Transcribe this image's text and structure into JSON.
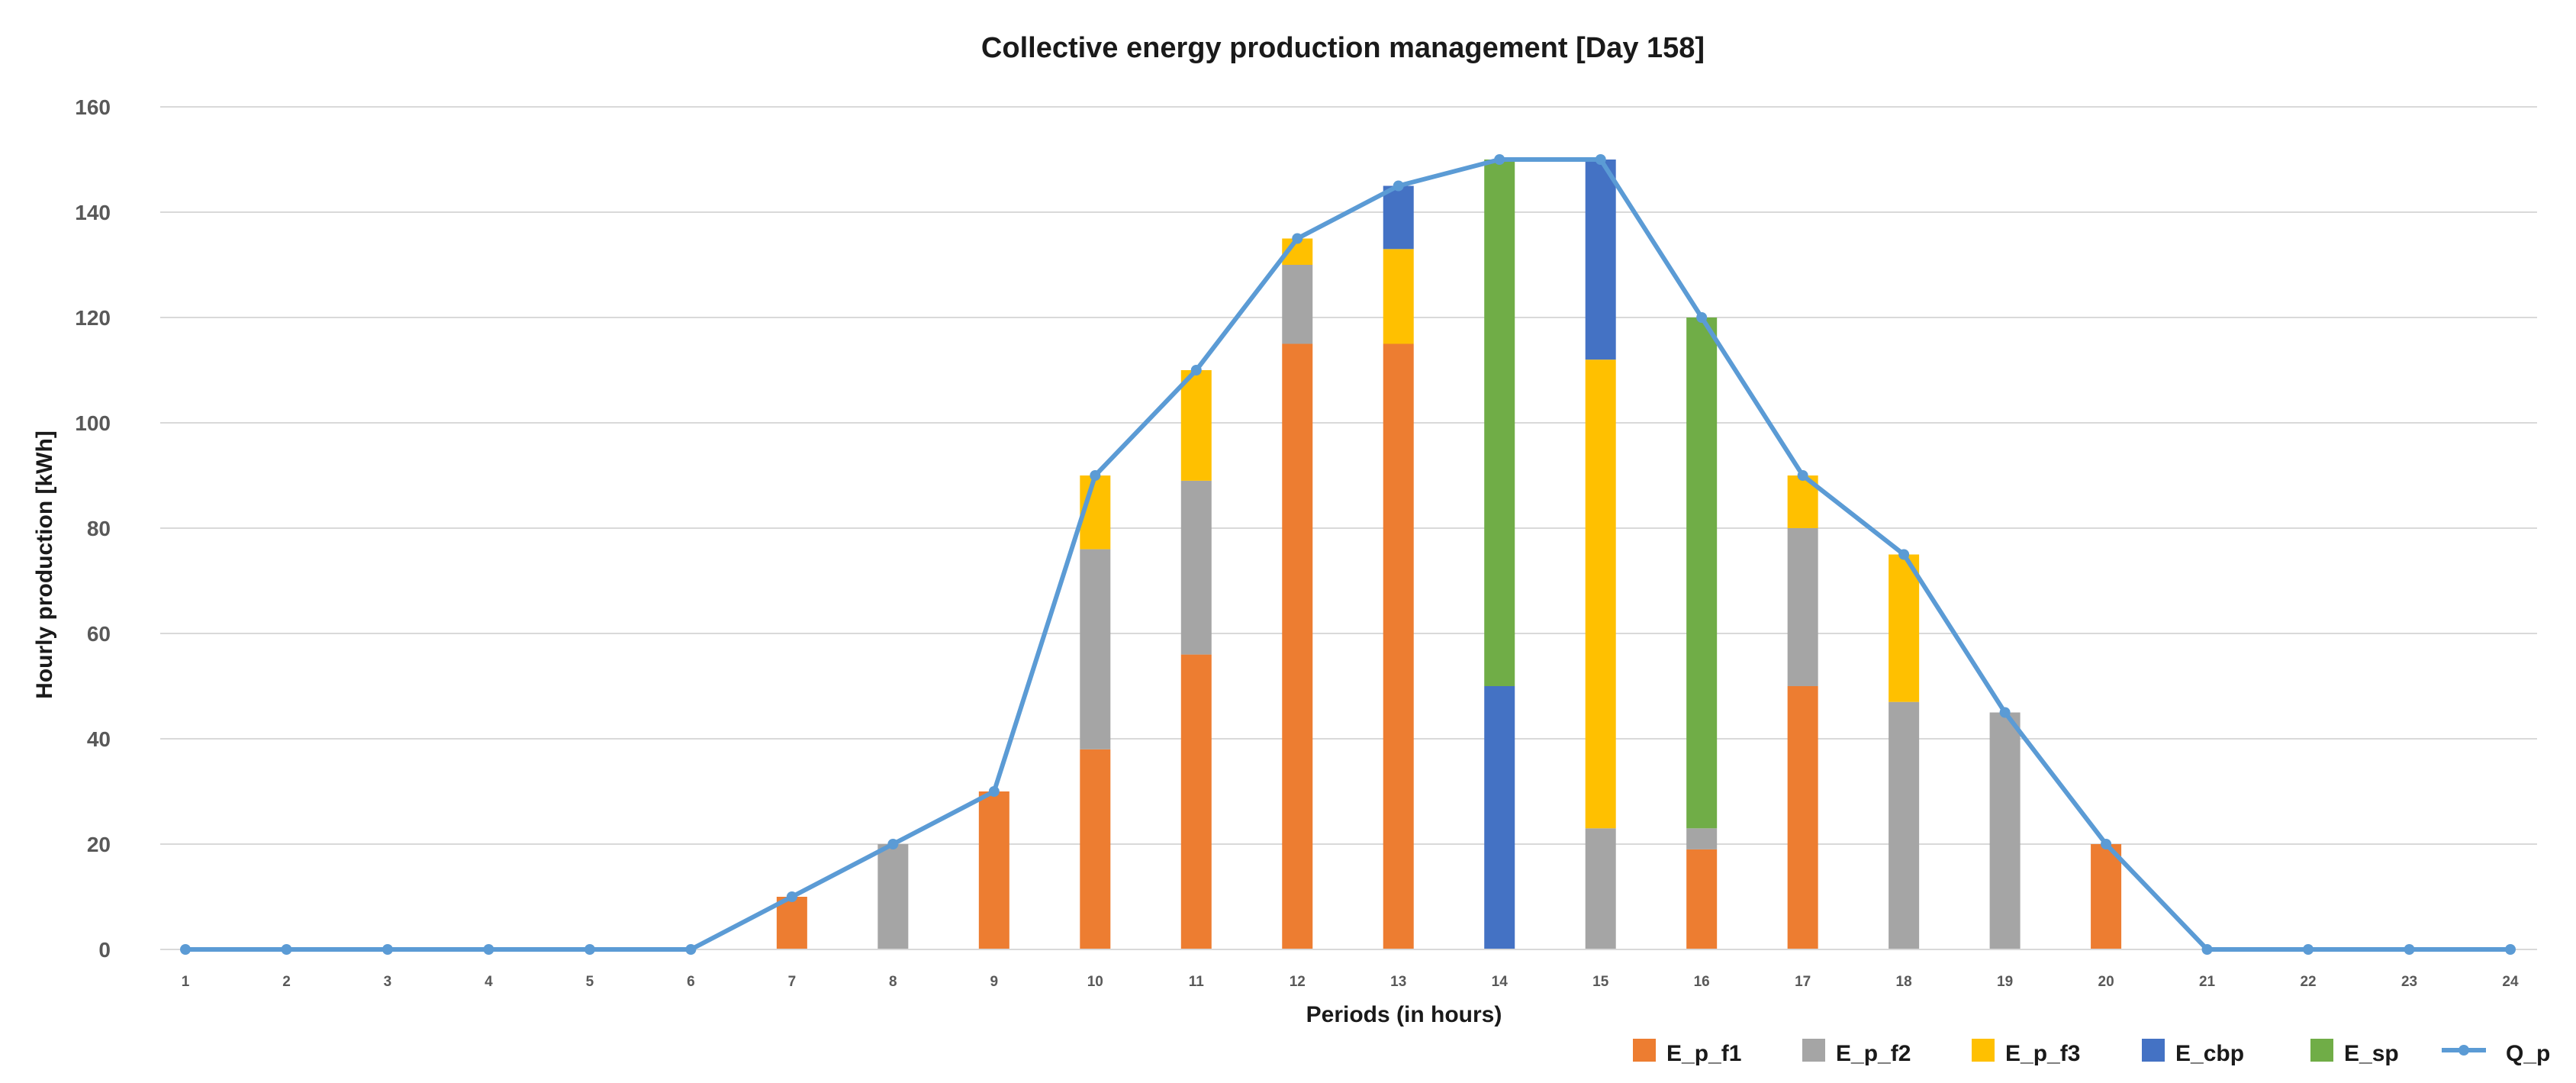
{
  "chart_data": {
    "type": "bar",
    "stacked": true,
    "title": "Collective energy production management [Day 158]",
    "xlabel": "Periods (in hours)",
    "ylabel": "Hourly production [kWh]",
    "ylim": [
      0,
      160
    ],
    "yticks": [
      0,
      20,
      40,
      60,
      80,
      100,
      120,
      140,
      160
    ],
    "grid": true,
    "legend_position": "bottom-right",
    "categories": [
      "1",
      "2",
      "3",
      "4",
      "5",
      "6",
      "7",
      "8",
      "9",
      "10",
      "11",
      "12",
      "13",
      "14",
      "15",
      "16",
      "17",
      "18",
      "19",
      "20",
      "21",
      "22",
      "23",
      "24"
    ],
    "series": [
      {
        "name": "E_p_f1",
        "color": "#ED7D31",
        "type": "bar",
        "values": [
          0,
          0,
          0,
          0,
          0,
          0,
          10,
          0,
          30,
          38,
          56,
          115,
          115,
          0,
          0,
          19,
          50,
          0,
          0,
          20,
          0,
          0,
          0,
          0
        ]
      },
      {
        "name": "E_p_f2",
        "color": "#A5A5A5",
        "type": "bar",
        "values": [
          0,
          0,
          0,
          0,
          0,
          0,
          0,
          20,
          0,
          38,
          33,
          15,
          0,
          0,
          23,
          4,
          30,
          47,
          45,
          0,
          0,
          0,
          0,
          0
        ]
      },
      {
        "name": "E_p_f3",
        "color": "#FFC000",
        "type": "bar",
        "values": [
          0,
          0,
          0,
          0,
          0,
          0,
          0,
          0,
          0,
          14,
          21,
          5,
          18,
          0,
          89,
          0,
          10,
          28,
          0,
          0,
          0,
          0,
          0,
          0
        ]
      },
      {
        "name": "E_cbp",
        "color": "#4472C4",
        "type": "bar",
        "values": [
          0,
          0,
          0,
          0,
          0,
          0,
          0,
          0,
          0,
          0,
          0,
          0,
          12,
          50,
          38,
          0,
          0,
          0,
          0,
          0,
          0,
          0,
          0,
          0
        ]
      },
      {
        "name": "E_sp",
        "color": "#70AD47",
        "type": "bar",
        "values": [
          0,
          0,
          0,
          0,
          0,
          0,
          0,
          0,
          0,
          0,
          0,
          0,
          0,
          100,
          0,
          97,
          0,
          0,
          0,
          0,
          0,
          0,
          0,
          0
        ]
      },
      {
        "name": "Q_p",
        "color": "#5B9BD5",
        "type": "line",
        "values": [
          0,
          0,
          0,
          0,
          0,
          0,
          10,
          20,
          30,
          90,
          110,
          135,
          145,
          150,
          150,
          120,
          90,
          75,
          45,
          20,
          0,
          0,
          0,
          0
        ]
      }
    ]
  }
}
